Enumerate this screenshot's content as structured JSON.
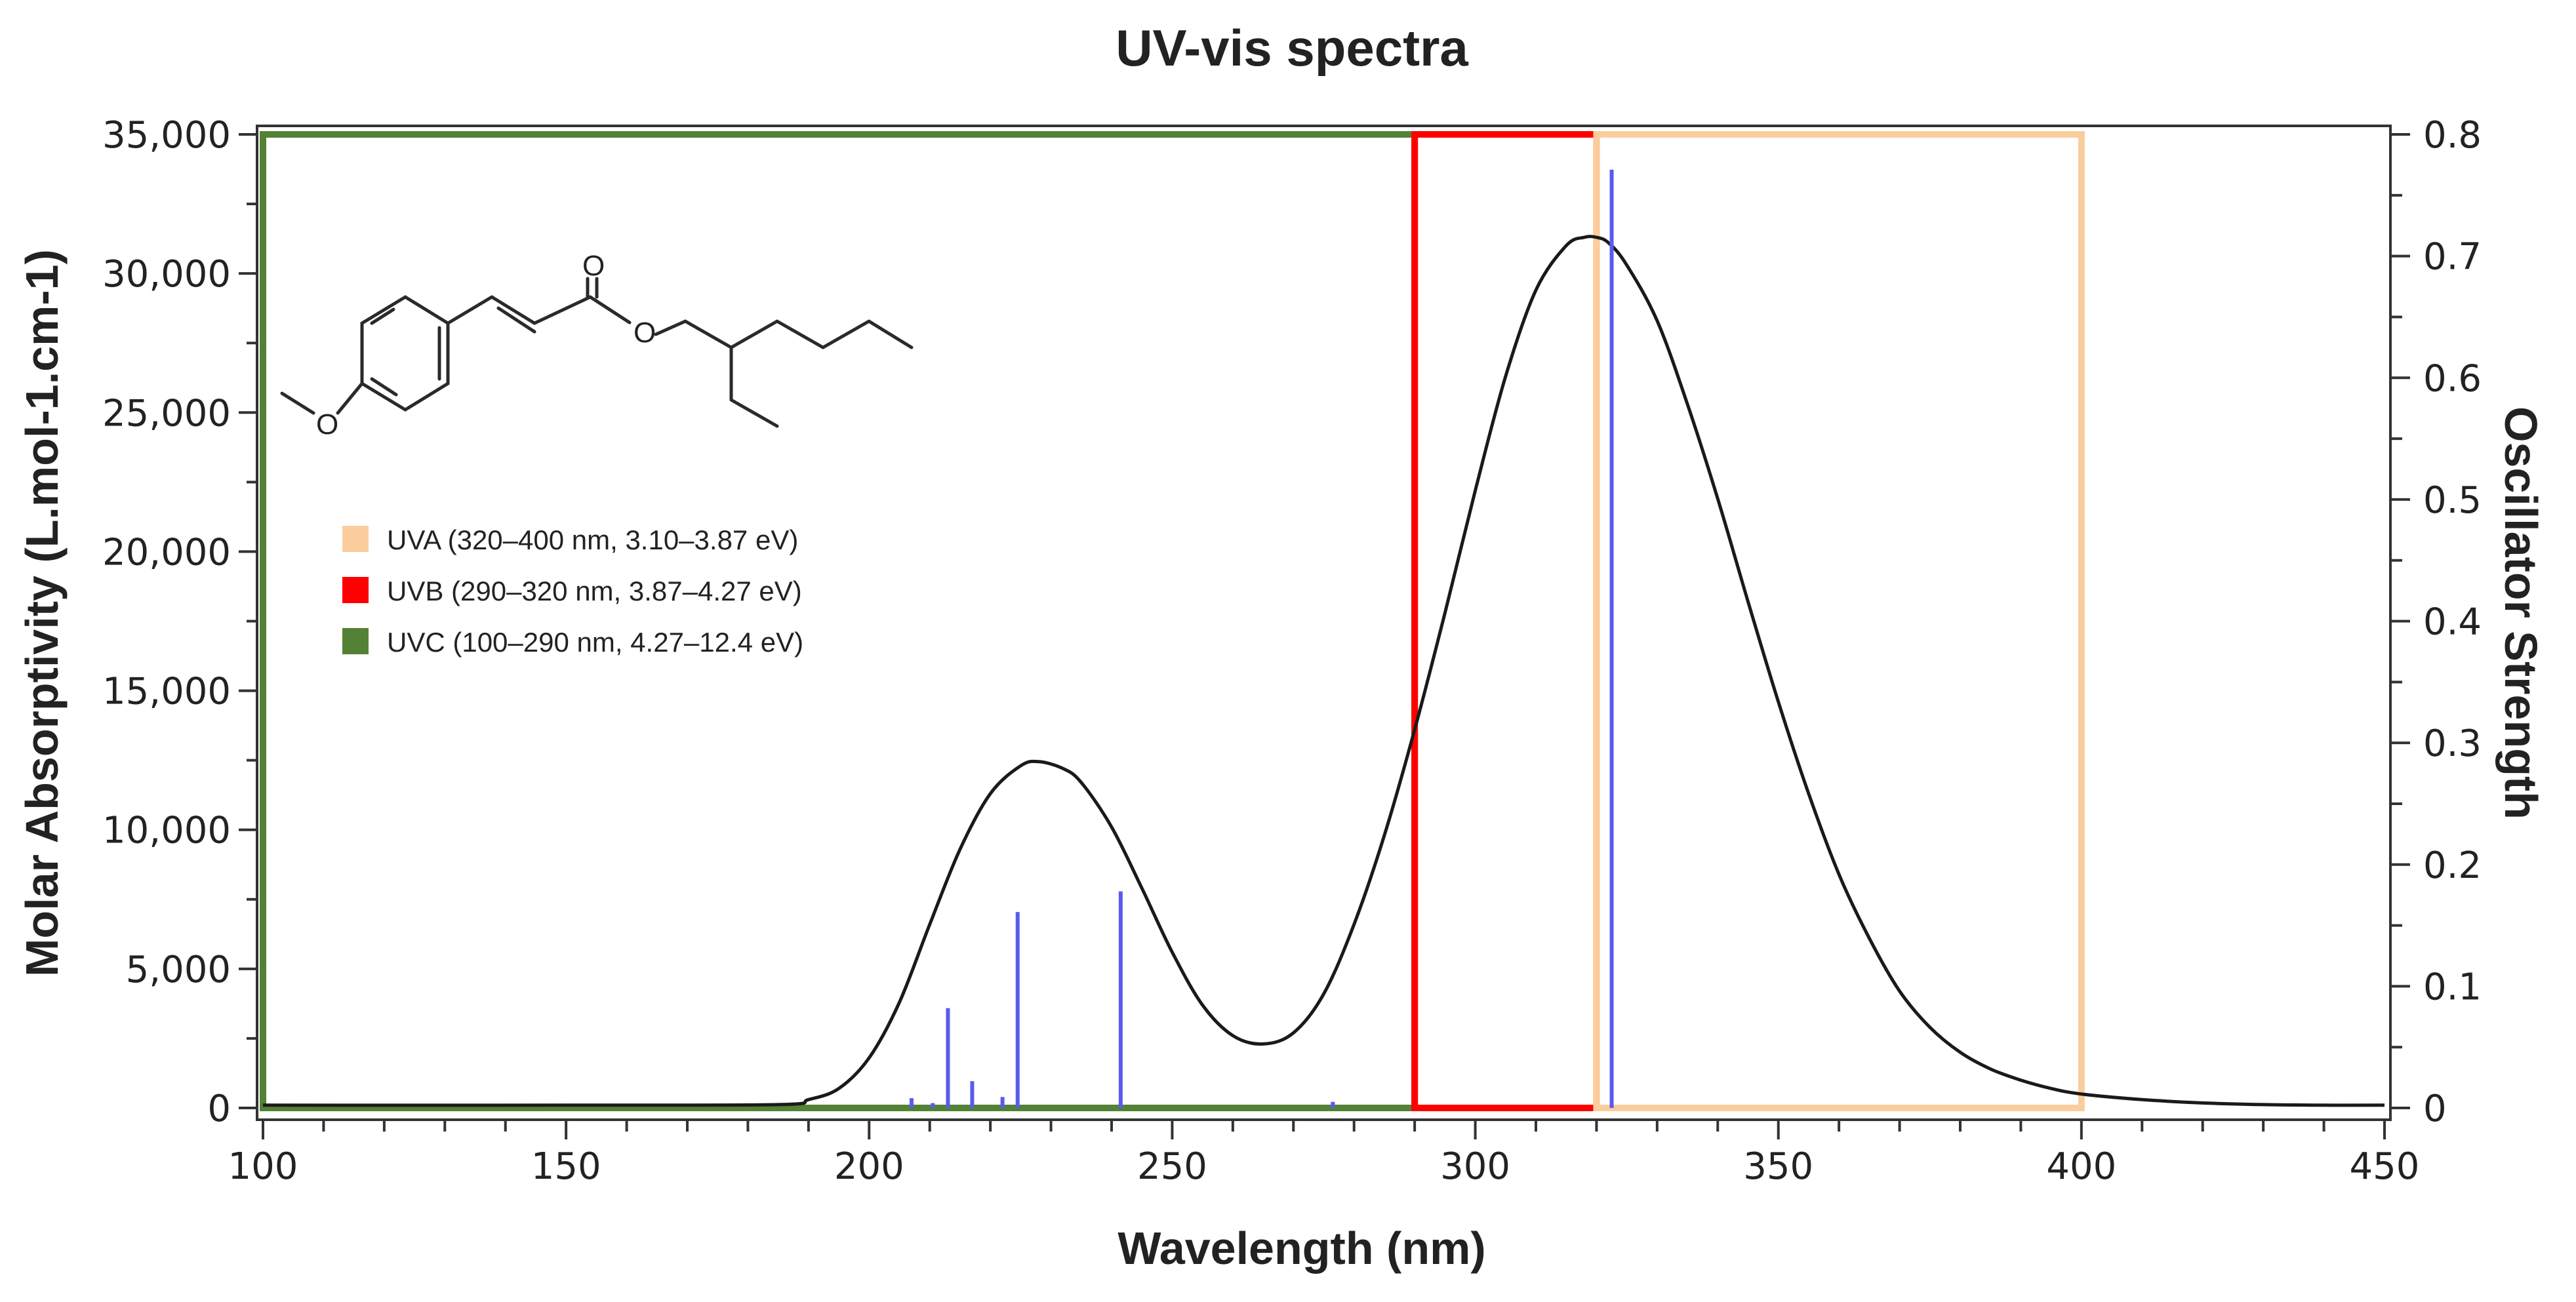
{
  "chart_data": {
    "type": "line",
    "title": "UV-vis spectra",
    "xlabel": "Wavelength (nm)",
    "ylabel": "Molar Absorptivity (L.mol-1.cm-1)",
    "y2label": "Oscillator Strength",
    "xlim": [
      100,
      450
    ],
    "ylim": [
      0,
      35000
    ],
    "y2lim": [
      0,
      0.8
    ],
    "x_ticks": [
      100,
      150,
      200,
      250,
      300,
      350,
      400,
      450
    ],
    "y_ticks": [
      {
        "value": 0,
        "label": "0"
      },
      {
        "value": 5000,
        "label": "5,000"
      },
      {
        "value": 10000,
        "label": "10,000"
      },
      {
        "value": 15000,
        "label": "15,000"
      },
      {
        "value": 20000,
        "label": "20,000"
      },
      {
        "value": 25000,
        "label": "25,000"
      },
      {
        "value": 30000,
        "label": "30,000"
      },
      {
        "value": 35000,
        "label": "35,000"
      }
    ],
    "y2_ticks": [
      0,
      0.1,
      0.2,
      0.3,
      0.4,
      0.5,
      0.6,
      0.7,
      0.8
    ],
    "series": [
      {
        "name": "Molar Absorptivity",
        "axis": "left",
        "color": "#1a1a1a",
        "x": [
          100,
          150,
          185,
          190,
          195,
          200,
          205,
          210,
          215,
          220,
          225,
          228,
          232,
          235,
          240,
          245,
          250,
          255,
          260,
          265,
          270,
          275,
          280,
          285,
          290,
          295,
          300,
          305,
          310,
          315,
          318,
          320,
          322,
          325,
          330,
          335,
          340,
          345,
          350,
          355,
          360,
          365,
          370,
          375,
          380,
          385,
          390,
          395,
          400,
          410,
          420,
          430,
          440,
          450
        ],
        "y": [
          100,
          100,
          120,
          300,
          700,
          1800,
          3800,
          6600,
          9300,
          11300,
          12300,
          12450,
          12200,
          11700,
          10100,
          7900,
          5600,
          3700,
          2600,
          2300,
          2700,
          4100,
          6600,
          9800,
          13600,
          17800,
          22200,
          26300,
          29400,
          31000,
          31300,
          31300,
          31100,
          30300,
          28300,
          25300,
          21900,
          18200,
          14600,
          11300,
          8400,
          6100,
          4200,
          2900,
          2000,
          1400,
          1000,
          700,
          500,
          300,
          180,
          120,
          100,
          100
        ]
      }
    ],
    "sticks": {
      "name": "Oscillator Strength",
      "axis": "right",
      "color": "#5a5af0",
      "x": [
        207,
        210.5,
        213,
        217,
        222,
        224.5,
        241.5,
        276.5,
        322.5
      ],
      "y": [
        0.008,
        0.004,
        0.082,
        0.022,
        0.009,
        0.161,
        0.178,
        0.005,
        0.771
      ]
    },
    "bands": [
      {
        "name": "UVC",
        "x_range": [
          100,
          290
        ],
        "color": "#538135"
      },
      {
        "name": "UVB",
        "x_range": [
          290,
          320
        ],
        "color": "#ff0000"
      },
      {
        "name": "UVA",
        "x_range": [
          320,
          400
        ],
        "color": "#fbcd9d"
      }
    ],
    "legend": {
      "position": "upper-left",
      "entries": [
        {
          "label": "UVA (320–400 nm, 3.10–3.87 eV)",
          "color": "#fbcd9d"
        },
        {
          "label": "UVB (290–320 nm, 3.87–4.27 eV)",
          "color": "#ff0000"
        },
        {
          "label": "UVC (100–290 nm, 4.27–12.4 eV)",
          "color": "#538135"
        }
      ]
    },
    "molecule": {
      "name": "2-ethylhexyl 4-methoxycinnamate",
      "atom_labels": [
        "O",
        "O",
        "O"
      ]
    }
  }
}
